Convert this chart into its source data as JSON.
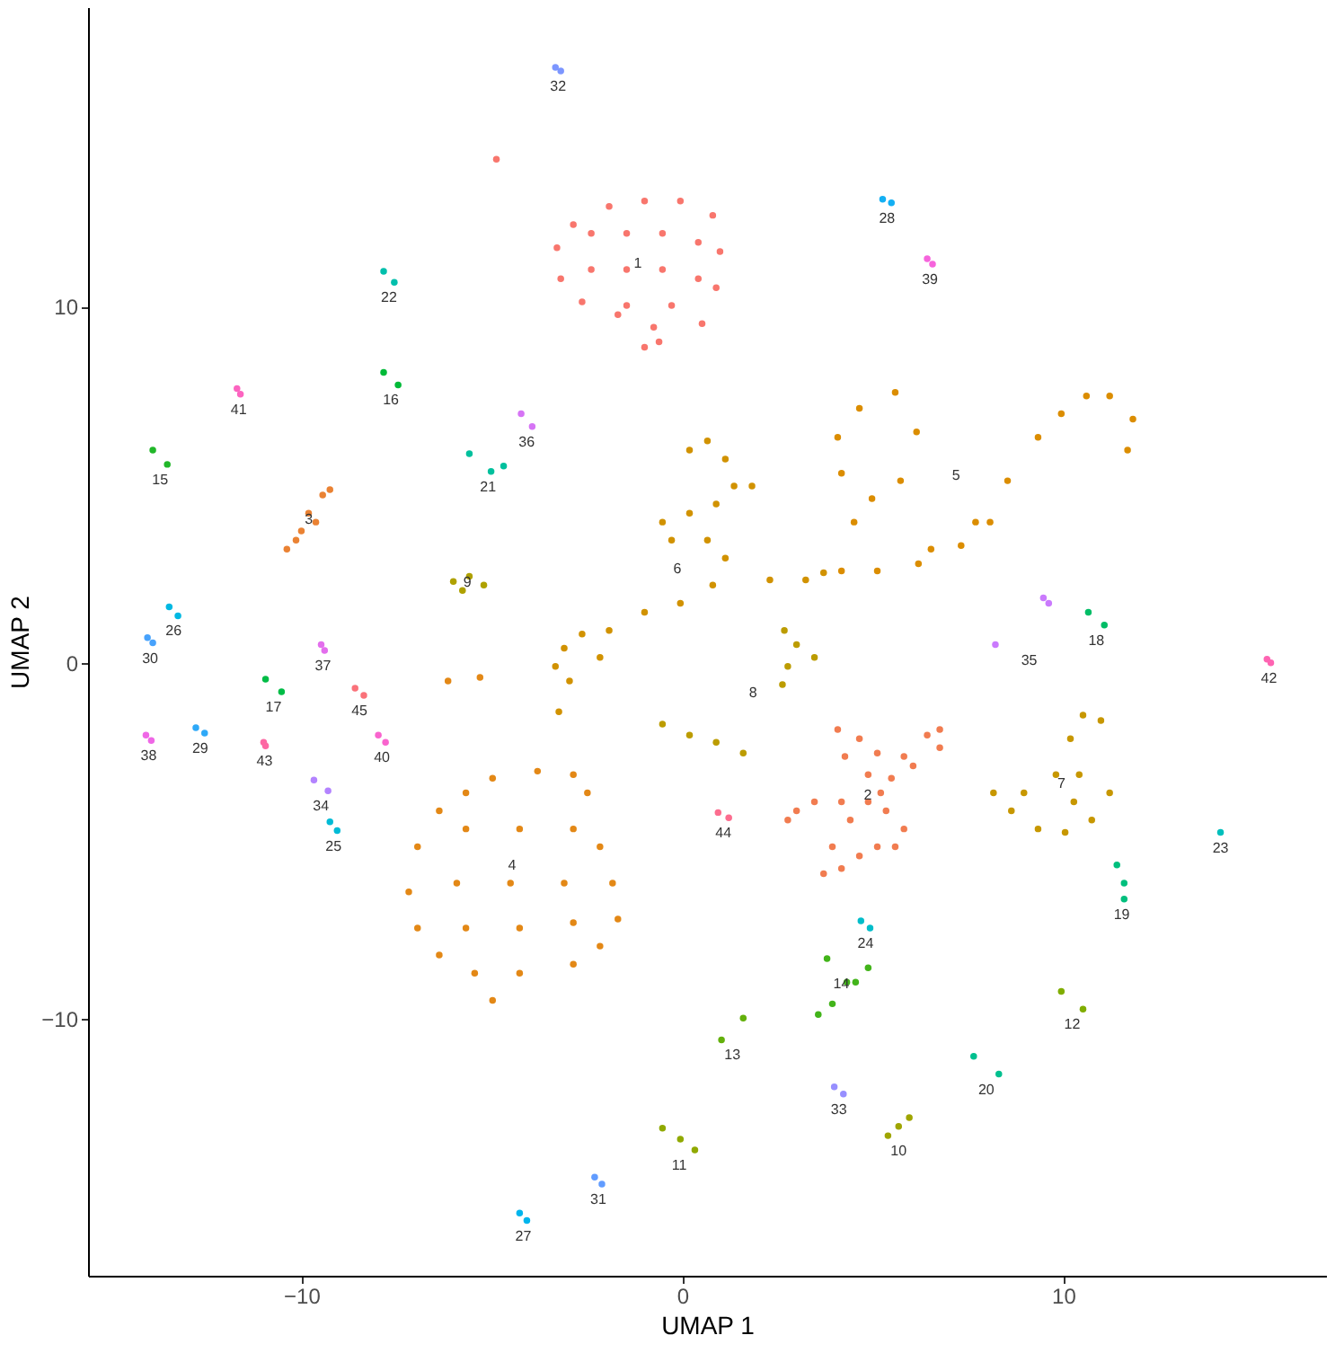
{
  "chart_data": {
    "type": "scatter",
    "xlabel": "UMAP 1",
    "ylabel": "UMAP 2",
    "xlim": [
      -15.6,
      16.9
    ],
    "ylim": [
      -17.2,
      18.4
    ],
    "xticks": [
      -10,
      0,
      10
    ],
    "yticks": [
      -10,
      0,
      10
    ],
    "grid": false,
    "legend": false,
    "marker": "circle",
    "series": [
      {
        "name": "1",
        "color": "#f8766d",
        "x": [
          -2.86,
          -1.92,
          -0.99,
          -0.05,
          0.8,
          0.99,
          0.89,
          0.52,
          -0.61,
          -0.99,
          -1.69,
          -2.63,
          -3.19,
          -3.29,
          -2.39,
          -1.46,
          -0.52,
          0.42,
          -2.39,
          -1.46,
          -0.52,
          0.42,
          -1.46,
          -0.28,
          -0.75,
          -4.88
        ],
        "values": [
          12.3,
          12.81,
          12.96,
          12.96,
          12.56,
          11.54,
          10.53,
          9.52,
          9.01,
          8.86,
          9.77,
          10.13,
          10.78,
          11.65,
          12.05,
          12.05,
          12.05,
          11.8,
          11.04,
          11.04,
          11.04,
          10.78,
          10.03,
          10.03,
          9.42,
          14.13
        ]
      },
      {
        "name": "2",
        "color": "#f17c50",
        "x": [
          4.08,
          4.65,
          5.12,
          5.82,
          6.43,
          6.76,
          6.76,
          6.06,
          5.49,
          5.21,
          4.88,
          5.35,
          5.82,
          5.59,
          5.12,
          4.65,
          4.18,
          3.71,
          3.94,
          4.41,
          4.18,
          3.47,
          3.0,
          2.77,
          4.27,
          4.88
        ],
        "values": [
          -1.87,
          -2.13,
          -2.53,
          -2.63,
          -2.03,
          -1.87,
          -2.38,
          -2.89,
          -3.24,
          -3.65,
          -3.9,
          -4.15,
          -4.66,
          -5.16,
          -5.16,
          -5.42,
          -5.77,
          -5.92,
          -5.16,
          -4.41,
          -3.9,
          -3.9,
          -4.15,
          -4.41,
          -2.63,
          -3.14
        ]
      },
      {
        "name": "3",
        "color": "#ea8233",
        "x": [
          -10.38,
          -10.0,
          -9.81,
          -9.44,
          -9.25,
          -10.14,
          -9.62
        ],
        "values": [
          3.19,
          3.7,
          4.2,
          4.71,
          4.86,
          3.44,
          3.95
        ]
      },
      {
        "name": "4",
        "color": "#e38816",
        "x": [
          -6.95,
          -6.38,
          -5.68,
          -4.98,
          -3.8,
          -2.86,
          -2.49,
          -2.16,
          -1.83,
          -1.69,
          -2.16,
          -2.86,
          -4.27,
          -5.45,
          -6.38,
          -6.95,
          -7.18,
          -4.98,
          -5.68,
          -4.27,
          -2.86,
          -5.92,
          -4.51,
          -3.1,
          -5.68,
          -4.27,
          -2.86,
          -6.15,
          -5.31
        ],
        "values": [
          -5.16,
          -4.15,
          -3.65,
          -3.24,
          -3.04,
          -3.14,
          -3.65,
          -5.16,
          -6.18,
          -7.19,
          -7.95,
          -8.46,
          -8.71,
          -8.71,
          -8.2,
          -7.44,
          -6.43,
          -9.47,
          -4.66,
          -4.66,
          -4.66,
          -6.18,
          -6.18,
          -6.18,
          -7.44,
          -7.44,
          -7.29,
          -0.51,
          -0.41
        ]
      },
      {
        "name": "5",
        "color": "#db8d00",
        "x": [
          5.12,
          6.2,
          7.32,
          8.08,
          8.54,
          9.34,
          9.95,
          10.61,
          11.22,
          11.83,
          11.69,
          4.65,
          5.59,
          6.15,
          5.73,
          4.98,
          4.18,
          4.08,
          4.51,
          4.18,
          6.53,
          7.7
        ],
        "values": [
          2.58,
          2.78,
          3.29,
          3.95,
          5.11,
          6.33,
          6.99,
          7.49,
          7.49,
          6.84,
          5.97,
          7.14,
          7.59,
          6.48,
          5.11,
          4.61,
          5.32,
          6.33,
          3.95,
          2.58,
          3.19,
          3.95
        ]
      },
      {
        "name": "6",
        "color": "#d19200",
        "x": [
          0.19,
          0.66,
          1.13,
          1.36,
          0.89,
          0.19,
          -0.52,
          -0.28,
          0.66,
          1.13,
          0.8,
          -0.05,
          -0.99,
          -1.92,
          -2.63,
          -3.1,
          -3.33,
          -2.96,
          -2.16,
          -3.24,
          1.83,
          2.3,
          3.24,
          3.71
        ],
        "values": [
          5.97,
          6.23,
          5.72,
          4.96,
          4.46,
          4.2,
          3.95,
          3.44,
          3.44,
          2.94,
          2.18,
          1.67,
          1.42,
          0.91,
          0.81,
          0.41,
          -0.1,
          -0.51,
          0.15,
          -1.37,
          4.96,
          2.33,
          2.33,
          2.53
        ]
      },
      {
        "name": "7",
        "color": "#c79700",
        "x": [
          10.52,
          10.99,
          10.19,
          9.81,
          10.42,
          11.22,
          10.75,
          10.05,
          9.34,
          8.64,
          8.17,
          8.97,
          10.28
        ],
        "values": [
          -1.47,
          -1.62,
          -2.13,
          -3.14,
          -3.14,
          -3.65,
          -4.41,
          -4.76,
          -4.66,
          -4.15,
          -3.65,
          -3.65,
          -3.9
        ]
      },
      {
        "name": "8",
        "color": "#bc9c00",
        "x": [
          2.68,
          3.0,
          3.47,
          2.77,
          2.63,
          -0.52,
          0.19,
          0.89,
          1.6
        ],
        "values": [
          0.91,
          0.51,
          0.15,
          -0.1,
          -0.61,
          -1.72,
          -2.03,
          -2.23,
          -2.53
        ]
      },
      {
        "name": "9",
        "color": "#afa100",
        "x": [
          -6.01,
          -5.59,
          -5.21,
          -5.77
        ],
        "values": [
          2.28,
          2.43,
          2.18,
          2.03
        ]
      },
      {
        "name": "10",
        "color": "#9fa500",
        "x": [
          5.4,
          5.68,
          5.96
        ],
        "values": [
          -13.27,
          -13.01,
          -12.76
        ]
      },
      {
        "name": "11",
        "color": "#90a900",
        "x": [
          -0.52,
          -0.05,
          0.33
        ],
        "values": [
          -13.06,
          -13.37,
          -13.67
        ]
      },
      {
        "name": "12",
        "color": "#80ad00",
        "x": [
          9.95,
          10.52
        ],
        "values": [
          -9.22,
          -9.72
        ]
      },
      {
        "name": "13",
        "color": "#63b00b",
        "x": [
          1.03,
          1.6
        ],
        "values": [
          -10.58,
          -9.97
        ]
      },
      {
        "name": "14",
        "color": "#42b41a",
        "x": [
          3.8,
          4.32,
          4.88,
          4.55,
          3.94,
          3.57
        ],
        "values": [
          -8.3,
          -8.96,
          -8.56,
          -8.96,
          -9.57,
          -9.87
        ]
      },
      {
        "name": "15",
        "color": "#21b729",
        "x": [
          -13.9,
          -13.52
        ],
        "values": [
          5.97,
          5.57
        ]
      },
      {
        "name": "16",
        "color": "#00ba38",
        "x": [
          -7.84,
          -7.46
        ],
        "values": [
          8.15,
          7.8
        ]
      },
      {
        "name": "17",
        "color": "#00bc46",
        "x": [
          -10.94,
          -10.52
        ],
        "values": [
          -0.46,
          -0.81
        ]
      },
      {
        "name": "18",
        "color": "#00bd66",
        "x": [
          10.66,
          11.08
        ],
        "values": [
          1.42,
          1.06
        ]
      },
      {
        "name": "19",
        "color": "#00bf7d",
        "x": [
          11.41,
          11.6,
          11.6
        ],
        "values": [
          -5.67,
          -6.18,
          -6.63
        ]
      },
      {
        "name": "20",
        "color": "#00c08f",
        "x": [
          7.65,
          8.31
        ],
        "values": [
          -11.04,
          -11.54
        ]
      },
      {
        "name": "21",
        "color": "#00c09d",
        "x": [
          -5.59,
          -5.02,
          -4.69
        ],
        "values": [
          5.87,
          5.37,
          5.52
        ]
      },
      {
        "name": "22",
        "color": "#00bfac",
        "x": [
          -7.84,
          -7.56
        ],
        "values": [
          10.99,
          10.68
        ]
      },
      {
        "name": "23",
        "color": "#00bfbc",
        "x": [
          14.13
        ],
        "values": [
          -4.76
        ]
      },
      {
        "name": "24",
        "color": "#00bdca",
        "x": [
          4.69,
          4.93
        ],
        "values": [
          -7.24,
          -7.44
        ]
      },
      {
        "name": "25",
        "color": "#00bbd6",
        "x": [
          -9.25,
          -9.06
        ],
        "values": [
          -4.46,
          -4.71
        ]
      },
      {
        "name": "26",
        "color": "#00b8e2",
        "x": [
          -13.47,
          -13.24
        ],
        "values": [
          1.57,
          1.32
        ]
      },
      {
        "name": "27",
        "color": "#00b5ed",
        "x": [
          -4.27,
          -4.08
        ],
        "values": [
          -15.44,
          -15.65
        ]
      },
      {
        "name": "28",
        "color": "#13aff3",
        "x": [
          5.26,
          5.49
        ],
        "values": [
          13.01,
          12.91
        ]
      },
      {
        "name": "29",
        "color": "#2ea9f8",
        "x": [
          -12.77,
          -12.54
        ],
        "values": [
          -1.82,
          -1.97
        ]
      },
      {
        "name": "30",
        "color": "#47a2fc",
        "x": [
          -14.04,
          -13.9
        ],
        "values": [
          0.71,
          0.56
        ]
      },
      {
        "name": "31",
        "color": "#619cff",
        "x": [
          -2.3,
          -2.11
        ],
        "values": [
          -14.43,
          -14.63
        ]
      },
      {
        "name": "32",
        "color": "#7c96ff",
        "x": [
          -3.33,
          -3.19
        ],
        "values": [
          16.71,
          16.61
        ]
      },
      {
        "name": "33",
        "color": "#978fff",
        "x": [
          3.99,
          4.23
        ],
        "values": [
          -11.9,
          -12.1
        ]
      },
      {
        "name": "34",
        "color": "#b383ff",
        "x": [
          -9.67,
          -9.3
        ],
        "values": [
          -3.29,
          -3.59
        ]
      },
      {
        "name": "35",
        "color": "#ca7afd",
        "x": [
          9.48,
          9.62,
          8.22
        ],
        "values": [
          1.82,
          1.67,
          0.51
        ]
      },
      {
        "name": "36",
        "color": "#d674f5",
        "x": [
          -4.23,
          -3.94
        ],
        "values": [
          6.99,
          6.63
        ]
      },
      {
        "name": "37",
        "color": "#e36eed",
        "x": [
          -9.48,
          -9.39
        ],
        "values": [
          0.51,
          0.35
        ]
      },
      {
        "name": "38",
        "color": "#ef67e6",
        "x": [
          -14.08,
          -13.94
        ],
        "values": [
          -2.03,
          -2.18
        ]
      },
      {
        "name": "39",
        "color": "#f664dc",
        "x": [
          6.43,
          6.57
        ],
        "values": [
          11.34,
          11.19
        ]
      },
      {
        "name": "40",
        "color": "#f964ce",
        "x": [
          -7.98,
          -7.79
        ],
        "values": [
          -2.03,
          -2.23
        ]
      },
      {
        "name": "41",
        "color": "#fc64c0",
        "x": [
          -11.69,
          -11.6
        ],
        "values": [
          7.7,
          7.54
        ]
      },
      {
        "name": "42",
        "color": "#fe64b2",
        "x": [
          15.35,
          15.45
        ],
        "values": [
          0.1,
          0.0
        ]
      },
      {
        "name": "43",
        "color": "#fd68a3",
        "x": [
          -10.99,
          -10.94
        ],
        "values": [
          -2.23,
          -2.33
        ]
      },
      {
        "name": "44",
        "color": "#fc6d8f",
        "x": [
          0.94,
          1.22
        ],
        "values": [
          -4.2,
          -4.35
        ]
      },
      {
        "name": "45",
        "color": "#fa727a",
        "x": [
          -8.59,
          -8.36
        ],
        "values": [
          -0.71,
          -0.91
        ]
      }
    ]
  }
}
